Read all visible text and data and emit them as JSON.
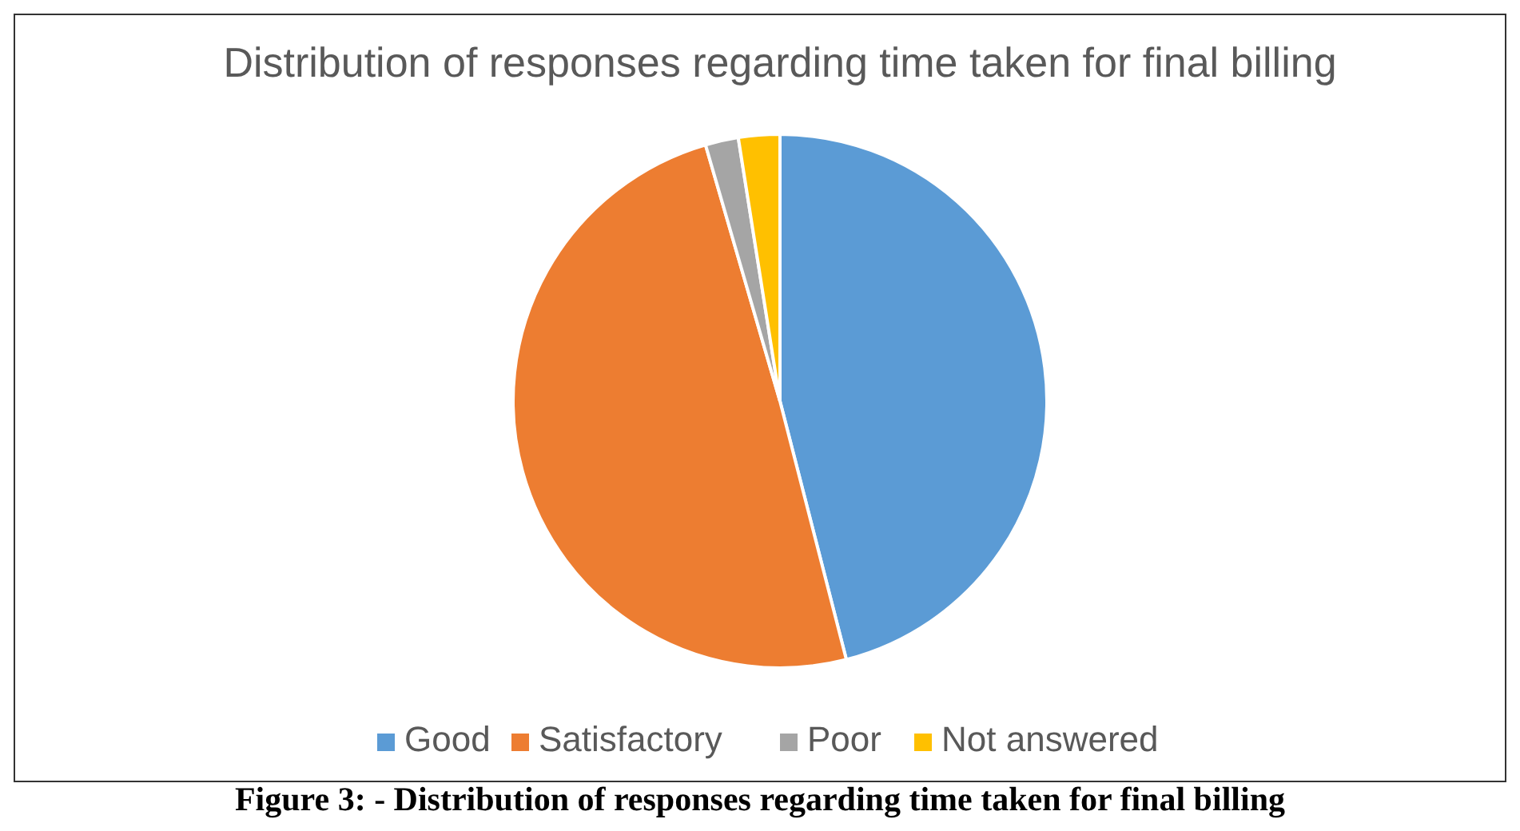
{
  "chart_data": {
    "type": "pie",
    "title": "Distribution of responses regarding time taken for final billing",
    "categories": [
      "Good",
      "Satisfactory",
      "Poor",
      "Not answered"
    ],
    "values": [
      46,
      49.5,
      2,
      2.5
    ],
    "colors": [
      "#5b9bd5",
      "#ed7d31",
      "#a5a5a5",
      "#ffc000"
    ],
    "legend": "bottom",
    "annotations": [
      "Figure 3: - Distribution of responses regarding time taken for final billing"
    ]
  }
}
